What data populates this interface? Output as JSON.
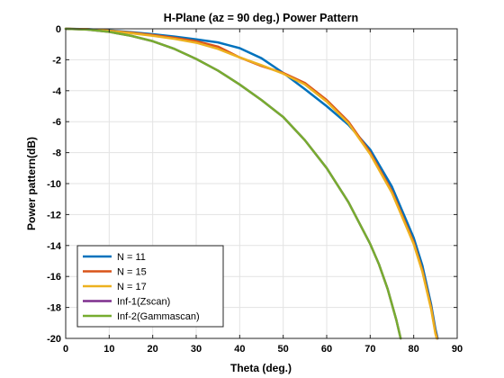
{
  "chart_data": {
    "type": "line",
    "title": "H-Plane (az = 90 deg.) Power Pattern",
    "xlabel": "Theta (deg.)",
    "ylabel": "Power pattern(dB)",
    "xlim": [
      0,
      90
    ],
    "ylim": [
      -20,
      0
    ],
    "xticks": [
      0,
      10,
      20,
      30,
      40,
      50,
      60,
      70,
      80,
      90
    ],
    "yticks": [
      0,
      -2,
      -4,
      -6,
      -8,
      -10,
      -12,
      -14,
      -16,
      -18,
      -20
    ],
    "grid": true,
    "legend_position": "bottom-left",
    "series": [
      {
        "name": "N = 11",
        "color": "#0072BD",
        "points": [
          [
            0,
            0
          ],
          [
            5,
            -0.02
          ],
          [
            10,
            -0.1
          ],
          [
            15,
            -0.22
          ],
          [
            20,
            -0.35
          ],
          [
            25,
            -0.5
          ],
          [
            30,
            -0.68
          ],
          [
            35,
            -0.88
          ],
          [
            40,
            -1.25
          ],
          [
            45,
            -1.9
          ],
          [
            50,
            -2.85
          ],
          [
            55,
            -3.9
          ],
          [
            60,
            -5.0
          ],
          [
            65,
            -6.2
          ],
          [
            70,
            -7.8
          ],
          [
            75,
            -10.2
          ],
          [
            80,
            -13.5
          ],
          [
            82,
            -15.3
          ],
          [
            84,
            -17.8
          ],
          [
            85,
            -19.4
          ],
          [
            85.5,
            -20
          ]
        ]
      },
      {
        "name": "N = 15",
        "color": "#D95319",
        "points": [
          [
            0,
            0
          ],
          [
            5,
            -0.03
          ],
          [
            10,
            -0.12
          ],
          [
            15,
            -0.25
          ],
          [
            20,
            -0.4
          ],
          [
            25,
            -0.58
          ],
          [
            30,
            -0.8
          ],
          [
            35,
            -1.15
          ],
          [
            40,
            -1.85
          ],
          [
            45,
            -2.4
          ],
          [
            50,
            -2.85
          ],
          [
            55,
            -3.5
          ],
          [
            60,
            -4.6
          ],
          [
            65,
            -6.0
          ],
          [
            70,
            -8.0
          ],
          [
            75,
            -10.5
          ],
          [
            80,
            -13.8
          ],
          [
            82,
            -15.6
          ],
          [
            84,
            -18.0
          ],
          [
            85,
            -19.6
          ],
          [
            85.4,
            -20
          ]
        ]
      },
      {
        "name": "N = 17",
        "color": "#EDB120",
        "points": [
          [
            0,
            0
          ],
          [
            5,
            -0.03
          ],
          [
            10,
            -0.13
          ],
          [
            15,
            -0.28
          ],
          [
            20,
            -0.45
          ],
          [
            25,
            -0.65
          ],
          [
            30,
            -0.9
          ],
          [
            35,
            -1.3
          ],
          [
            40,
            -1.85
          ],
          [
            45,
            -2.35
          ],
          [
            50,
            -2.9
          ],
          [
            55,
            -3.6
          ],
          [
            60,
            -4.7
          ],
          [
            65,
            -6.1
          ],
          [
            70,
            -8.1
          ],
          [
            75,
            -10.6
          ],
          [
            80,
            -13.9
          ],
          [
            82,
            -15.7
          ],
          [
            84,
            -18.1
          ],
          [
            85,
            -19.7
          ],
          [
            85.3,
            -20
          ]
        ]
      },
      {
        "name": "Inf-1(Zscan)",
        "color": "#7E2F8E",
        "points": [
          [
            0,
            0
          ],
          [
            5,
            -0.05
          ],
          [
            10,
            -0.2
          ],
          [
            15,
            -0.45
          ],
          [
            20,
            -0.8
          ],
          [
            25,
            -1.3
          ],
          [
            30,
            -1.95
          ],
          [
            35,
            -2.7
          ],
          [
            40,
            -3.6
          ],
          [
            45,
            -4.6
          ],
          [
            50,
            -5.7
          ],
          [
            55,
            -7.2
          ],
          [
            60,
            -9.0
          ],
          [
            65,
            -11.2
          ],
          [
            70,
            -13.9
          ],
          [
            72,
            -15.2
          ],
          [
            74,
            -16.8
          ],
          [
            76,
            -18.8
          ],
          [
            77,
            -20
          ]
        ]
      },
      {
        "name": "Inf-2(Gammascan)",
        "color": "#77AC30",
        "points": [
          [
            0,
            0
          ],
          [
            5,
            -0.05
          ],
          [
            10,
            -0.2
          ],
          [
            15,
            -0.45
          ],
          [
            20,
            -0.8
          ],
          [
            25,
            -1.3
          ],
          [
            30,
            -1.95
          ],
          [
            35,
            -2.7
          ],
          [
            40,
            -3.6
          ],
          [
            45,
            -4.6
          ],
          [
            50,
            -5.7
          ],
          [
            55,
            -7.2
          ],
          [
            60,
            -9.0
          ],
          [
            65,
            -11.2
          ],
          [
            70,
            -13.9
          ],
          [
            72,
            -15.2
          ],
          [
            74,
            -16.8
          ],
          [
            76,
            -18.8
          ],
          [
            77,
            -20
          ]
        ]
      }
    ]
  }
}
